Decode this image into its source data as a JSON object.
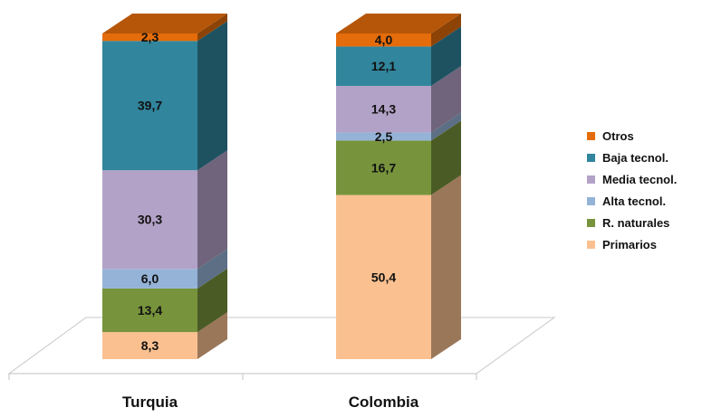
{
  "chart_data": {
    "type": "bar",
    "stacked": true,
    "three_d": true,
    "categories": [
      "Turquia",
      "Colombia"
    ],
    "series": [
      {
        "name": "Primarios",
        "values": [
          8.3,
          50.4
        ],
        "labels": [
          "8,3",
          "50,4"
        ],
        "color": "#fac090"
      },
      {
        "name": "R. naturales",
        "values": [
          13.4,
          16.7
        ],
        "labels": [
          "13,4",
          "16,7"
        ],
        "color": "#77933c"
      },
      {
        "name": "Alta tecnol.",
        "values": [
          6.0,
          2.5
        ],
        "labels": [
          "6,0",
          "2,5"
        ],
        "color": "#95b3d7"
      },
      {
        "name": "Media tecnol.",
        "values": [
          30.3,
          14.3
        ],
        "labels": [
          "30,3",
          "14,3"
        ],
        "color": "#b3a2c7"
      },
      {
        "name": "Baja tecnol.",
        "values": [
          39.7,
          12.1
        ],
        "labels": [
          "39,7",
          "12,1"
        ],
        "color": "#31859c"
      },
      {
        "name": "Otros",
        "values": [
          2.3,
          4.0
        ],
        "labels": [
          "2,3",
          "4,0"
        ],
        "color": "#e46c0a"
      }
    ],
    "ylim": [
      0,
      100
    ],
    "grid": false,
    "legend_position": "right"
  },
  "legend": [
    {
      "name": "Otros",
      "color": "#e46c0a"
    },
    {
      "name": "Baja tecnol.",
      "color": "#31859c"
    },
    {
      "name": "Media tecnol.",
      "color": "#b3a2c7"
    },
    {
      "name": "Alta tecnol.",
      "color": "#95b3d7"
    },
    {
      "name": "R. naturales",
      "color": "#77933c"
    },
    {
      "name": "Primarios",
      "color": "#fac090"
    }
  ]
}
